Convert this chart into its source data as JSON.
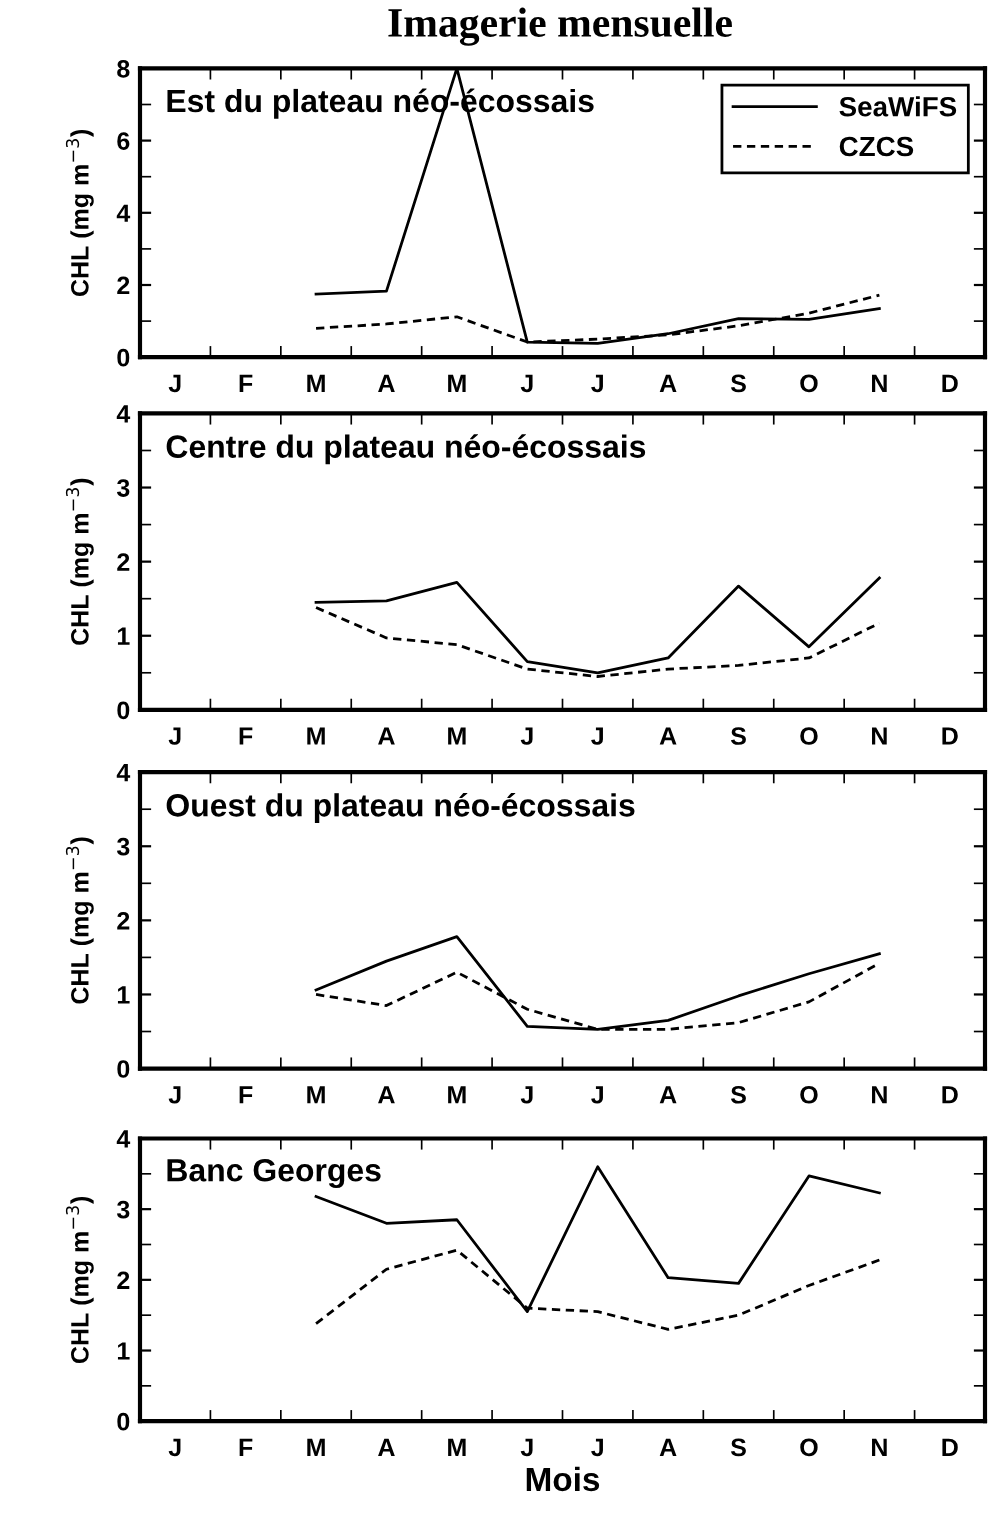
{
  "chart_data": [
    {
      "type": "line",
      "title": "Imagerie mensuelle",
      "subtitle": "Est du plateau néo-écossais",
      "ylabel": "CHL (mg m$^{−3}$)",
      "categories": [
        "J",
        "F",
        "M",
        "A",
        "M",
        "J",
        "J",
        "A",
        "S",
        "O",
        "N",
        "D"
      ],
      "ylim": [
        0,
        8
      ],
      "yticks": [
        0,
        {
          "value": 1,
          "label": null
        },
        2,
        {
          "value": 3,
          "label": null
        },
        4,
        {
          "value": 5,
          "label": null
        },
        6,
        {
          "value": 7,
          "label": null
        },
        8
      ],
      "legend": "top right",
      "series": [
        {
          "name": "SeaWiFS",
          "color": "#000000",
          "line_style": "solid",
          "values": [
            null,
            null,
            1.75,
            1.83,
            8,
            0.42,
            0.38,
            0.65,
            1.07,
            1.05,
            1.35,
            null
          ]
        },
        {
          "name": "CZCS",
          "color": "#000000",
          "line_style": "dashed",
          "values": [
            null,
            null,
            0.8,
            0.92,
            1.12,
            0.42,
            0.5,
            0.62,
            0.87,
            1.22,
            1.72,
            null
          ]
        }
      ]
    },
    {
      "type": "line",
      "subtitle": "Centre du plateau néo-écossais",
      "ylabel": "CHL (mg m$^{−3}$)",
      "categories": [
        "J",
        "F",
        "M",
        "A",
        "M",
        "J",
        "J",
        "A",
        "S",
        "O",
        "N",
        "D"
      ],
      "ylim": [
        0,
        4
      ],
      "yticks": [
        0,
        {
          "value": 0.5,
          "label": null
        },
        1,
        {
          "value": 1.5,
          "label": null
        },
        2,
        {
          "value": 2.5,
          "label": null
        },
        3,
        {
          "value": 3.5,
          "label": null
        },
        4
      ],
      "series": [
        {
          "color": "#000000",
          "line_style": "solid",
          "values": [
            null,
            null,
            1.45,
            1.47,
            1.72,
            0.65,
            0.5,
            0.7,
            1.67,
            0.85,
            1.78,
            null
          ]
        },
        {
          "color": "#000000",
          "line_style": "dashed",
          "values": [
            null,
            null,
            1.38,
            0.97,
            0.88,
            0.55,
            0.45,
            0.55,
            0.6,
            0.7,
            1.17,
            null
          ]
        }
      ]
    },
    {
      "type": "line",
      "subtitle": "Ouest du plateau néo-écossais",
      "ylabel": "CHL (mg m$^{−3}$)",
      "categories": [
        "J",
        "F",
        "M",
        "A",
        "M",
        "J",
        "J",
        "A",
        "S",
        "O",
        "N",
        "D"
      ],
      "ylim": [
        0,
        4
      ],
      "yticks": [
        0,
        {
          "value": 0.5,
          "label": null
        },
        1,
        {
          "value": 1.5,
          "label": null
        },
        2,
        {
          "value": 2.5,
          "label": null
        },
        3,
        {
          "value": 3.5,
          "label": null
        },
        4
      ],
      "series": [
        {
          "color": "#000000",
          "line_style": "solid",
          "values": [
            null,
            null,
            1.06,
            1.45,
            1.78,
            0.57,
            0.53,
            0.65,
            0.98,
            1.28,
            1.55,
            null
          ]
        },
        {
          "color": "#000000",
          "line_style": "dashed",
          "values": [
            null,
            null,
            1.0,
            0.85,
            1.3,
            0.8,
            0.53,
            0.53,
            0.62,
            0.9,
            1.42,
            null
          ]
        }
      ]
    },
    {
      "type": "line",
      "subtitle": "Banc Georges",
      "ylabel": "CHL (mg m$^{−3}$)",
      "xlabel": "Mois",
      "categories": [
        "J",
        "F",
        "M",
        "A",
        "M",
        "J",
        "J",
        "A",
        "S",
        "O",
        "N",
        "D"
      ],
      "ylim": [
        0,
        4
      ],
      "yticks": [
        0,
        {
          "value": 0.5,
          "label": null
        },
        1,
        {
          "value": 1.5,
          "label": null
        },
        2,
        {
          "value": 2.5,
          "label": null
        },
        3,
        {
          "value": 3.5,
          "label": null
        },
        4
      ],
      "series": [
        {
          "color": "#000000",
          "line_style": "solid",
          "values": [
            null,
            null,
            3.18,
            2.8,
            2.85,
            1.55,
            3.6,
            2.03,
            1.95,
            3.47,
            3.23,
            null
          ]
        },
        {
          "color": "#000000",
          "line_style": "dashed",
          "values": [
            null,
            null,
            1.38,
            2.15,
            2.42,
            1.6,
            1.55,
            1.3,
            1.5,
            1.92,
            2.28,
            null
          ]
        }
      ]
    }
  ]
}
